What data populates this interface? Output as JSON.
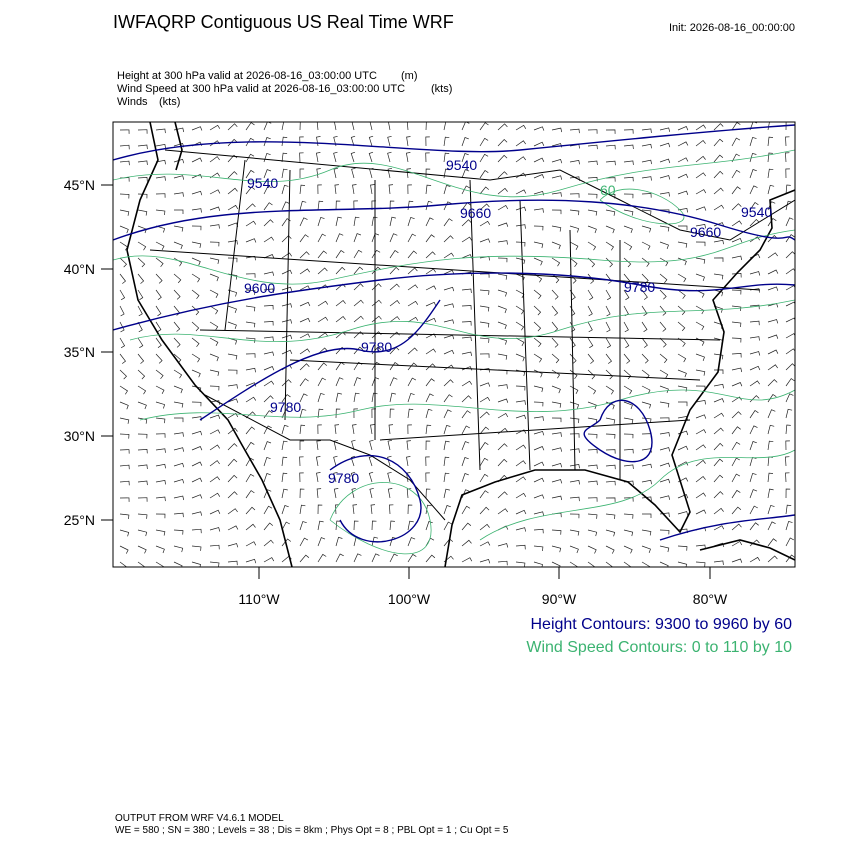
{
  "header": {
    "title": "IWFAQRP Contiguous US Real Time WRF",
    "init": "Init: 2026-08-16_00:00:00"
  },
  "fields": [
    {
      "label": "Height at 300 hPa valid at 2026-08-16_03:00:00 UTC",
      "units": "(m)"
    },
    {
      "label": "Wind Speed at 300 hPa valid at 2026-08-16_03:00:00 UTC",
      "units": "(kts)"
    },
    {
      "label": "Winds",
      "units": "(kts)"
    }
  ],
  "axes": {
    "lat_labels": [
      "45°N",
      "40°N",
      "35°N",
      "30°N",
      "25°N"
    ],
    "lon_labels": [
      "110°W",
      "100°W",
      "90°W",
      "80°W"
    ]
  },
  "contour_labels": [
    "9540",
    "9540",
    "9660",
    "9660",
    "9540",
    "9600",
    "9780",
    "9780",
    "9780",
    "9780",
    "60"
  ],
  "legend": {
    "height": "Height Contours: 9300 to 9960 by 60",
    "wind": "Wind Speed Contours: 0 to 110 by 10"
  },
  "footer": {
    "model": "OUTPUT FROM WRF V4.6.1 MODEL",
    "settings": "WE = 580 ; SN = 380 ; Levels = 38 ; Dis = 8km ; Phys Opt = 8 ; PBL Opt = 1 ; Cu Opt = 5"
  }
}
